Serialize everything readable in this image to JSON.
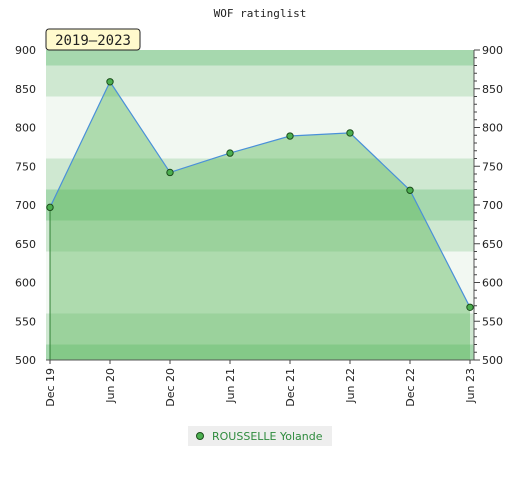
{
  "chart_data": {
    "type": "area",
    "title": "WOF ratinglist",
    "badge": "2019—2023",
    "x": [
      "Dec 19",
      "Jun 20",
      "Dec 20",
      "Jun 21",
      "Dec 21",
      "Jun 22",
      "Dec 22",
      "Jun 23"
    ],
    "series": [
      {
        "name": "ROUSSELLE Yolande",
        "values": [
          697,
          859,
          742,
          767,
          789,
          793,
          719,
          568
        ]
      }
    ],
    "ylim": [
      500,
      900
    ],
    "yticks": [
      500,
      550,
      600,
      650,
      700,
      750,
      800,
      850,
      900
    ],
    "grid": true,
    "legend": "bottom",
    "colors": {
      "area": "#5cb85c",
      "line": "#4a90d9",
      "marker": "#4caf50",
      "band_light": "#f2f8f2",
      "band_mid": "#cfe8d1",
      "band_dark": "#a6d8ae",
      "badge_bg": "#fffacd"
    }
  }
}
